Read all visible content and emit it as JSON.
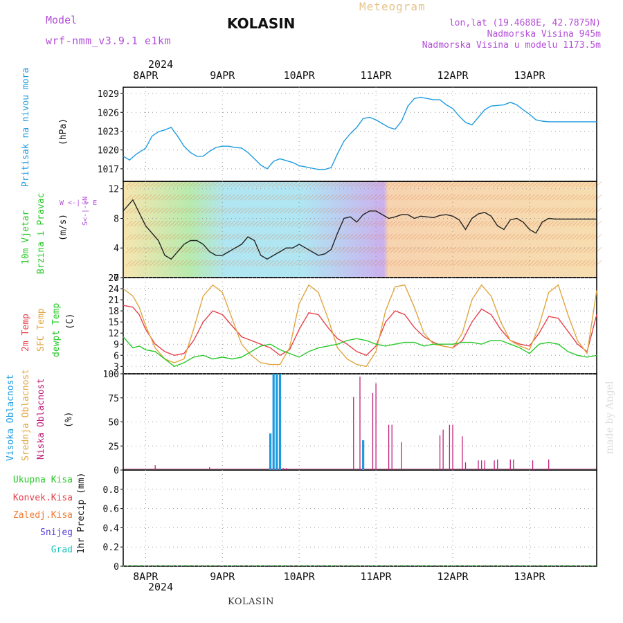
{
  "header": {
    "title": "KOLASIN",
    "model_label": "Model",
    "model_name": "wrf-nmm_v3.9.1 e1km",
    "meteogram_label": "Meteogram",
    "lonlat": "lon,lat (19.4688E, 42.7875N)",
    "altitude": "Nadmorska Visina 945m",
    "model_altitude": "Nadmorska Visina u modelu 1173.5m"
  },
  "footer": {
    "station": "KOLASIN",
    "watermark": "made by Angel"
  },
  "axes_labels": {
    "year_top": "2024",
    "year_bottom": "2024",
    "dates": [
      "8APR",
      "9APR",
      "10APR",
      "11APR",
      "12APR",
      "13APR"
    ],
    "pressure": {
      "title": "Pritisak na nivou mora",
      "unit": "(hPa)"
    },
    "wind": {
      "title1": "10m Vjetar",
      "title2": "Brzina i Pravac",
      "unit": "(m/s)",
      "compass_ns": "S<-|->N",
      "compass_we": "W <-|-> E"
    },
    "temp": {
      "t2m": "2m Temp",
      "sfc": "SFC Temp",
      "dew": "dewpt Temp",
      "unit": "(C)"
    },
    "cloud": {
      "high": "Visoka Oblacnost",
      "mid": "Srednja Oblacnost",
      "low": "Niska Oblacnost",
      "unit": "(%)"
    },
    "precip": {
      "title": "1hr Precip (mm)",
      "legend": [
        "Ukupna Kisa",
        "Konvek.Kisa",
        "Zaledj.Kisa",
        "Snijeg",
        "Grad"
      ]
    }
  },
  "colors": {
    "pressure": "#1e9be0",
    "t2m": "#e8404a",
    "sfc": "#e0a640",
    "dew": "#28c828",
    "cloud_high": "#1e9be0",
    "cloud_mid": "#e0a640",
    "cloud_low": "#c0207a",
    "leg_total": "#28c828",
    "leg_conv": "#e8404a",
    "leg_frz": "#f07a30",
    "leg_snow": "#5a3cd8",
    "leg_hail": "#18c8b8",
    "title_pressure": "#1e9be0",
    "title_wind": "#28c828",
    "title_t2m": "#e8404a",
    "title_sfc": "#e0a640",
    "title_dew": "#28c828",
    "title_high": "#1e9be0",
    "title_mid": "#e0a640",
    "title_low": "#c0207a"
  },
  "chart_data": [
    {
      "type": "line",
      "name": "pressure",
      "x_unit": "hours from 8APR 00UTC",
      "xlim": [
        -7,
        141
      ],
      "ylim": [
        1015,
        1030
      ],
      "yticks": [
        1017,
        1020,
        1023,
        1026,
        1029
      ],
      "series": [
        {
          "name": "Pritisak na nivou mora",
          "x": [
            -7,
            -5,
            -3,
            0,
            2,
            4,
            6,
            8,
            10,
            12,
            14,
            16,
            18,
            20,
            22,
            24,
            26,
            28,
            30,
            32,
            34,
            36,
            38,
            40,
            42,
            44,
            46,
            48,
            50,
            52,
            54,
            56,
            58,
            60,
            62,
            64,
            66,
            68,
            70,
            72,
            74,
            76,
            78,
            80,
            82,
            84,
            86,
            88,
            90,
            92,
            94,
            96,
            98,
            100,
            102,
            104,
            106,
            108,
            110,
            112,
            114,
            116,
            118,
            120,
            122,
            124,
            126,
            128,
            130,
            132,
            134,
            136,
            138,
            140,
            141
          ],
          "values": [
            1019,
            1018.4,
            1019.3,
            1020.3,
            1022.2,
            1022.9,
            1023.2,
            1023.6,
            1022.2,
            1020.6,
            1019.6,
            1019,
            1019,
            1019.8,
            1020.4,
            1020.6,
            1020.6,
            1020.4,
            1020.3,
            1019.6,
            1018.6,
            1017.6,
            1017,
            1018.2,
            1018.6,
            1018.3,
            1018,
            1017.5,
            1017.3,
            1017.1,
            1016.9,
            1016.9,
            1017.2,
            1019.4,
            1021.4,
            1022.6,
            1023.6,
            1025,
            1025.2,
            1024.8,
            1024.2,
            1023.6,
            1023.3,
            1024.6,
            1027,
            1028.2,
            1028.4,
            1028.2,
            1028,
            1028,
            1027.2,
            1026.6,
            1025.4,
            1024.4,
            1024,
            1025.2,
            1026.4,
            1027,
            1027.1,
            1027.2,
            1027.6,
            1027.2,
            1026.4,
            1025.7,
            1024.8,
            1024.6,
            1024.5,
            1024.5,
            1024.5,
            1024.5,
            1024.5,
            1024.5,
            1024.5,
            1024.5,
            1024.5
          ]
        }
      ]
    },
    {
      "type": "line",
      "name": "wind",
      "x_unit": "hours from 8APR 00UTC",
      "xlim": [
        -7,
        141
      ],
      "ylim": [
        0,
        13
      ],
      "yticks": [
        0,
        4,
        8,
        12
      ],
      "series": [
        {
          "name": "10m wind speed",
          "x": [
            -7,
            -4,
            0,
            2,
            4,
            6,
            8,
            10,
            12,
            14,
            16,
            18,
            20,
            22,
            24,
            26,
            28,
            30,
            32,
            34,
            36,
            38,
            40,
            42,
            44,
            46,
            48,
            50,
            52,
            54,
            56,
            58,
            60,
            62,
            64,
            66,
            68,
            70,
            72,
            74,
            76,
            78,
            80,
            82,
            84,
            86,
            88,
            90,
            92,
            94,
            96,
            98,
            100,
            102,
            104,
            106,
            108,
            110,
            112,
            114,
            116,
            118,
            120,
            122,
            124,
            126,
            128,
            130,
            132,
            134,
            136,
            138,
            140,
            141
          ],
          "values": [
            9,
            10.5,
            7,
            6,
            5,
            3,
            2.5,
            3.5,
            4.5,
            5,
            5,
            4.5,
            3.5,
            3,
            3,
            3.5,
            4,
            4.5,
            5.5,
            5,
            3,
            2.5,
            3,
            3.5,
            4,
            4,
            4.5,
            4,
            3.5,
            3,
            3.2,
            3.8,
            6,
            8,
            8.2,
            7.5,
            8.5,
            9,
            9,
            8.5,
            8,
            8.2,
            8.5,
            8.5,
            8,
            8.3,
            8.2,
            8.1,
            8.4,
            8.5,
            8.3,
            7.8,
            6.5,
            8,
            8.6,
            8.8,
            8.3,
            7,
            6.5,
            7.8,
            8,
            7.5,
            6.5,
            6,
            7.5,
            8,
            7.9,
            7.9,
            7.9,
            7.9,
            7.9,
            7.9,
            7.9,
            7.9
          ]
        }
      ]
    },
    {
      "type": "line",
      "name": "temperature",
      "x_unit": "hours from 8APR 00UTC",
      "xlim": [
        -7,
        141
      ],
      "ylim": [
        1,
        27
      ],
      "yticks": [
        3,
        6,
        9,
        12,
        15,
        18,
        21,
        24,
        27
      ],
      "series": [
        {
          "name": "2m Temp",
          "x": [
            -7,
            -4,
            -2,
            0,
            3,
            6,
            9,
            12,
            15,
            18,
            21,
            24,
            27,
            30,
            33,
            36,
            39,
            42,
            45,
            48,
            51,
            54,
            57,
            60,
            63,
            66,
            69,
            72,
            75,
            78,
            81,
            84,
            87,
            90,
            93,
            96,
            99,
            102,
            105,
            108,
            111,
            114,
            117,
            120,
            123,
            126,
            129,
            132,
            135,
            138,
            141
          ],
          "values": [
            19.5,
            19,
            17,
            13,
            9,
            7,
            6,
            6.5,
            10,
            15,
            18,
            17,
            14,
            11,
            10,
            9,
            8,
            6,
            7.5,
            13,
            17.5,
            17,
            13.5,
            10.5,
            9,
            7,
            6,
            8.5,
            15,
            18,
            17,
            13.5,
            11,
            9.5,
            8.5,
            8,
            10,
            15,
            18.5,
            17,
            13,
            10,
            9,
            8.5,
            12,
            16.5,
            16,
            12.5,
            9,
            7,
            17
          ]
        },
        {
          "name": "SFC Temp",
          "x": [
            -7,
            -4,
            -2,
            0,
            3,
            6,
            9,
            12,
            15,
            18,
            21,
            24,
            27,
            30,
            33,
            36,
            39,
            42,
            45,
            48,
            51,
            54,
            57,
            60,
            63,
            66,
            69,
            72,
            75,
            78,
            81,
            84,
            87,
            90,
            93,
            96,
            99,
            102,
            105,
            108,
            111,
            114,
            117,
            120,
            123,
            126,
            129,
            132,
            135,
            138,
            141
          ],
          "values": [
            24,
            22,
            19,
            14,
            8,
            5,
            4,
            5,
            13,
            22,
            25,
            23,
            16,
            9,
            6,
            4,
            3.5,
            3.5,
            8,
            20,
            25,
            23,
            16,
            8,
            5,
            3.5,
            3,
            7,
            18,
            24.5,
            25,
            19,
            12,
            9,
            8.5,
            8,
            12,
            21,
            25,
            22,
            15,
            10,
            8.5,
            7.5,
            14,
            23,
            25,
            17,
            10,
            6.5,
            23.5
          ]
        },
        {
          "name": "dewpt Temp",
          "x": [
            -7,
            -4,
            -2,
            0,
            3,
            6,
            9,
            12,
            15,
            18,
            21,
            24,
            27,
            30,
            33,
            36,
            39,
            42,
            45,
            48,
            51,
            54,
            57,
            60,
            63,
            66,
            69,
            72,
            75,
            78,
            81,
            84,
            87,
            90,
            93,
            96,
            99,
            102,
            105,
            108,
            111,
            114,
            117,
            120,
            123,
            126,
            129,
            132,
            135,
            138,
            141
          ],
          "values": [
            11,
            8,
            8.5,
            7.5,
            7,
            5,
            3,
            4,
            5.5,
            6,
            5,
            5.5,
            5,
            5.5,
            7,
            8.5,
            9,
            7.5,
            6.5,
            5.5,
            7,
            8,
            8.5,
            9,
            10,
            10.5,
            10,
            9,
            8.5,
            9,
            9.5,
            9.5,
            8.5,
            9,
            9,
            9,
            9.5,
            9.5,
            9,
            10,
            10,
            9,
            8,
            6.5,
            9,
            9.5,
            9,
            7,
            6,
            5.5,
            6
          ]
        }
      ]
    },
    {
      "type": "bar",
      "name": "cloud",
      "x_unit": "hours from 8APR 00UTC",
      "xlim": [
        -7,
        141
      ],
      "ylim": [
        0,
        100
      ],
      "yticks": [
        0,
        25,
        50,
        75,
        100
      ],
      "series": [
        {
          "name": "Visoka Oblacnost",
          "x": [
            39,
            40,
            41,
            42,
            68
          ],
          "values": [
            38,
            100,
            100,
            100,
            31
          ]
        },
        {
          "name": "Niska Oblacnost",
          "x": [
            3,
            20,
            43,
            44,
            65,
            67,
            71,
            72,
            76,
            77,
            80,
            92,
            93,
            95,
            96,
            99,
            100,
            104,
            105,
            106,
            109,
            110,
            114,
            115,
            121,
            126
          ],
          "values": [
            5,
            3,
            2,
            2,
            76,
            97,
            80,
            90,
            47,
            47,
            29,
            36,
            42,
            47,
            47,
            35,
            8,
            10,
            10,
            10,
            10,
            11,
            11,
            11,
            10,
            11
          ]
        }
      ]
    },
    {
      "type": "bar",
      "name": "precip",
      "x_unit": "hours from 8APR 00UTC",
      "xlim": [
        -7,
        141
      ],
      "ylim": [
        0,
        1
      ],
      "yticks": [
        0,
        0.2,
        0.4,
        0.6,
        0.8
      ],
      "series": [
        {
          "name": "Ukupna Kisa",
          "x": [],
          "values": []
        }
      ]
    }
  ]
}
